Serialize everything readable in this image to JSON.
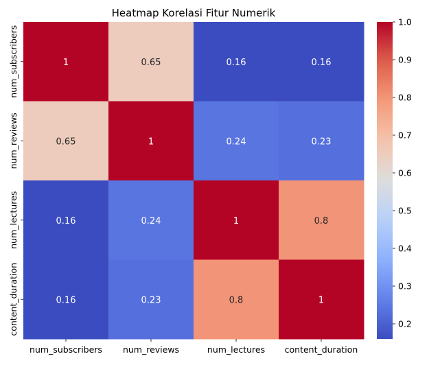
{
  "chart_data": {
    "type": "heatmap",
    "title": "Heatmap Korelasi Fitur Numerik",
    "x_labels": [
      "num_subscribers",
      "num_reviews",
      "num_lectures",
      "content_duration"
    ],
    "y_labels": [
      "num_subscribers",
      "num_reviews",
      "num_lectures",
      "content_duration"
    ],
    "values": [
      [
        1,
        0.65,
        0.16,
        0.16
      ],
      [
        0.65,
        1,
        0.24,
        0.23
      ],
      [
        0.16,
        0.24,
        1,
        0.8
      ],
      [
        0.16,
        0.23,
        0.8,
        1
      ]
    ],
    "value_labels": [
      [
        "1",
        "0.65",
        "0.16",
        "0.16"
      ],
      [
        "0.65",
        "1",
        "0.24",
        "0.23"
      ],
      [
        "0.16",
        "0.24",
        "1",
        "0.8"
      ],
      [
        "0.16",
        "0.23",
        "0.8",
        "1"
      ]
    ],
    "colormap": "coolwarm",
    "vmin": 0.16,
    "vmax": 1.0,
    "colorbar_ticks": [
      0.2,
      0.3,
      0.4,
      0.5,
      0.6,
      0.7,
      0.8,
      0.9,
      1.0
    ],
    "colorbar_tick_labels": [
      "0.2",
      "0.3",
      "0.4",
      "0.5",
      "0.6",
      "0.7",
      "0.8",
      "0.9",
      "1.0"
    ],
    "xlabel": "",
    "ylabel": "",
    "grid": false
  }
}
